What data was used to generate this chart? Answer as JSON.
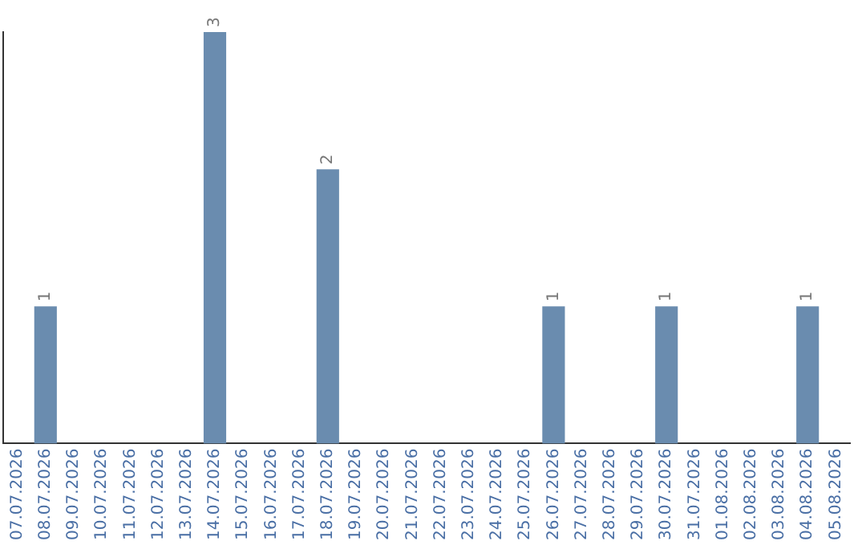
{
  "chart_data": {
    "type": "bar",
    "categories": [
      "07.07.2026",
      "08.07.2026",
      "09.07.2026",
      "10.07.2026",
      "11.07.2026",
      "12.07.2026",
      "13.07.2026",
      "14.07.2026",
      "15.07.2026",
      "16.07.2026",
      "17.07.2026",
      "18.07.2026",
      "19.07.2026",
      "20.07.2026",
      "21.07.2026",
      "22.07.2026",
      "23.07.2026",
      "24.07.2026",
      "25.07.2026",
      "26.07.2026",
      "27.07.2026",
      "28.07.2026",
      "29.07.2026",
      "30.07.2026",
      "31.07.2026",
      "01.08.2026",
      "02.08.2026",
      "03.08.2026",
      "04.08.2026",
      "05.08.2026"
    ],
    "values": [
      0,
      1,
      0,
      0,
      0,
      0,
      0,
      3,
      0,
      0,
      0,
      2,
      0,
      0,
      0,
      0,
      0,
      0,
      0,
      1,
      0,
      0,
      0,
      1,
      0,
      0,
      0,
      0,
      1,
      0
    ],
    "value_labels": [
      null,
      "1",
      null,
      null,
      null,
      null,
      null,
      "3",
      null,
      null,
      null,
      "2",
      null,
      null,
      null,
      null,
      null,
      null,
      null,
      "1",
      null,
      null,
      null,
      "1",
      null,
      null,
      null,
      null,
      "1",
      null
    ],
    "color": "#6a8caf",
    "ylim": [
      0,
      3
    ],
    "tick_labels": "x",
    "grid": false,
    "legend": false
  }
}
